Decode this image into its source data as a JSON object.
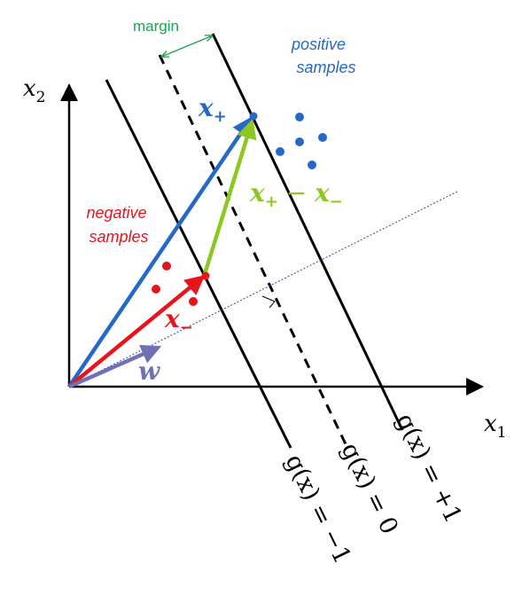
{
  "labels": {
    "margin": "margin",
    "positive_line1": "positive",
    "positive_line2": "samples",
    "negative_line1": "negative",
    "negative_line2": "samples",
    "x_axis_sub": "1",
    "y_axis_sub": "2",
    "x_plus": "x",
    "x_plus_sub": "+",
    "x_minus": "x",
    "x_minus_sub": "−",
    "diff": "x",
    "diff_sub1": "+",
    "diff_mid": " − ",
    "diff_x2": "x",
    "diff_sub2": "−",
    "w": "w",
    "line_neg": "g(x) = −1",
    "line_zero": "g(x) = 0",
    "line_pos": "g(x) = +1"
  },
  "colors": {
    "blue": "#2468c8",
    "red": "#e8141c",
    "green": "#8cc820",
    "purple": "#7070b8",
    "margin_green": "#20a050",
    "black": "#000000"
  },
  "icons": {
    "perpendicular": "right-angle-mark"
  }
}
